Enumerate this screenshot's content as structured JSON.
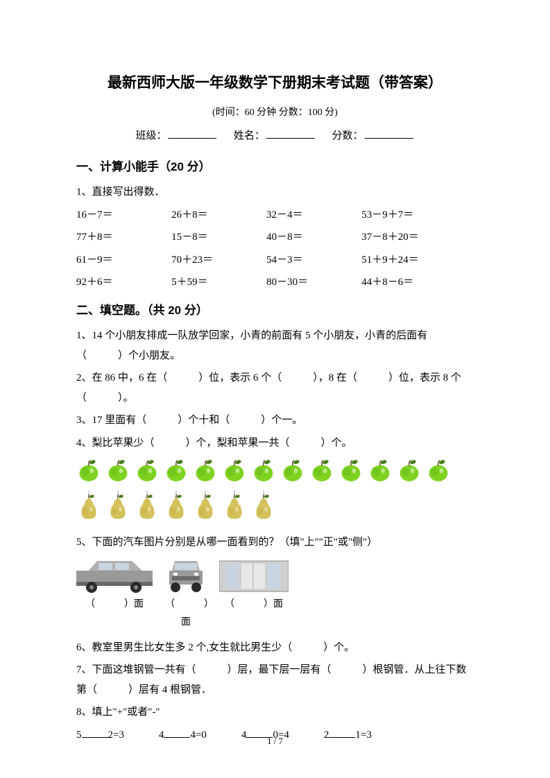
{
  "title": "最新西师大版一年级数学下册期末考试题（带答案）",
  "subtitle": "(时间：60 分钟    分数：100 分)",
  "info": {
    "class_label": "班级：",
    "name_label": "姓名：",
    "score_label": "分数："
  },
  "section1": {
    "header": "一、计算小能手（20 分）",
    "lead": "1、直接写出得数．",
    "rows": [
      [
        "16－7＝",
        "26＋8＝",
        "32－4＝",
        "53－9＋7＝"
      ],
      [
        "77＋8＝",
        "15－8＝",
        "40－8＝",
        "37－8＋20＝"
      ],
      [
        "61－9＝",
        "70＋23＝",
        "54－3＝",
        "51＋9＋24＝"
      ],
      [
        "92＋6＝",
        "5＋59＝",
        "80－30＝",
        "44＋8－6＝"
      ]
    ]
  },
  "section2": {
    "header": "二、填空题。（共 20 分）",
    "q1": "1、14 个小朋友排成一队放学回家，小青的前面有 5 个小朋友，小青的后面有（　　　）个小朋友。",
    "q2": "2、在 86 中，6 在（　　　）位，表示 6 个（　　　），8 在（　　　）位，表示 8 个（　　　）。",
    "q3": "3、17 里面有（　　　）个十和（　　　）个一。",
    "q4": "4、梨比苹果少（　　　）个，梨和苹果一共（　　　）个。",
    "apples_count": 13,
    "pears_count": 7,
    "q5": "5、下面的汽车图片分别是从哪一面看到的？（填\"上\"\"正\"或\"侧\"）",
    "car_labels": [
      "（　　　）面",
      "（　　　）面",
      "（　　　）面"
    ],
    "q6": "6、教室里男生比女生多 2 个,女生就比男生少（　　　）个。",
    "q7": "7、下面这堆钢管一共有（　　　）层，最下层一层有（　　　）根钢管．从上往下数第（　　　）层有 4 根钢管．",
    "q8": "8、填上\"+\"或者\"-\"",
    "equations": [
      {
        "a": "5",
        "b": "2=3"
      },
      {
        "a": "4",
        "b": "4=0"
      },
      {
        "a": "4",
        "b": "0=4"
      },
      {
        "a": "2",
        "b": "1=3"
      }
    ]
  },
  "page_num": "1 / 7",
  "colors": {
    "apple_fill": "#7ed321",
    "apple_dark": "#5ba818",
    "apple_leaf": "#4a7c1c",
    "pear_fill": "#d4c15a",
    "pear_dark": "#b8a33e",
    "pear_leaf": "#4a7c1c",
    "car_body": "#9a9a9a",
    "car_dark": "#6a6a6a",
    "car_window": "#c8d4e0",
    "car_wheel": "#2a2a2a"
  }
}
